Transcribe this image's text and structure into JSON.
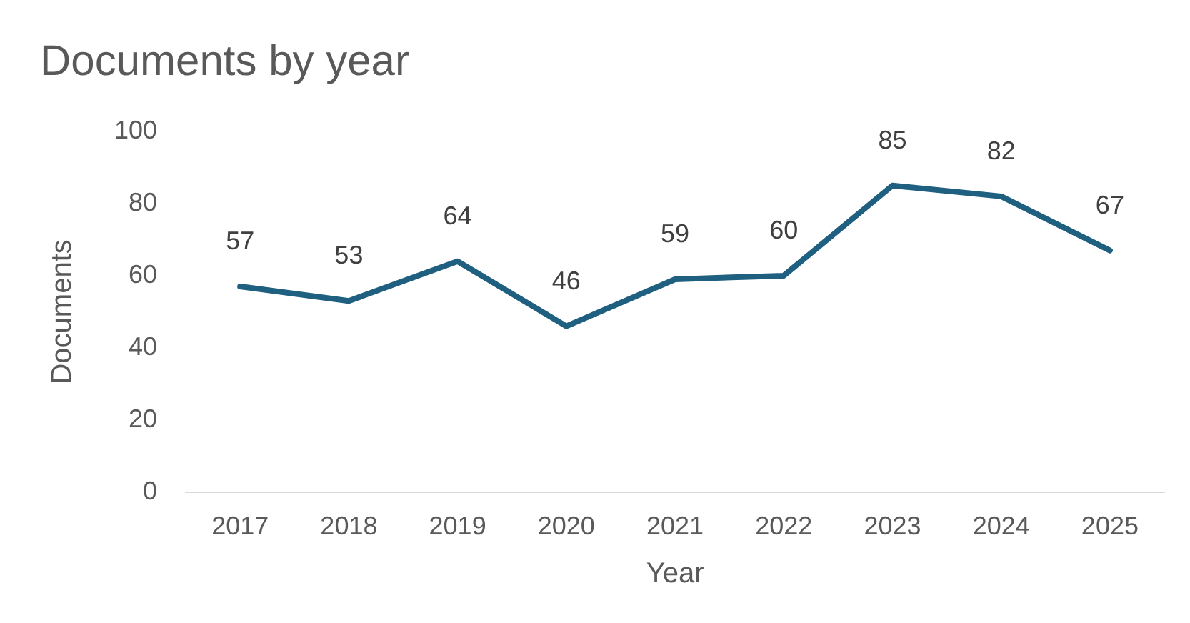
{
  "chart_data": {
    "type": "line",
    "title": "Documents by year",
    "xlabel": "Year",
    "ylabel": "Documents",
    "categories": [
      "2017",
      "2018",
      "2019",
      "2020",
      "2021",
      "2022",
      "2023",
      "2024",
      "2025"
    ],
    "series": [
      {
        "color": "#1f5f7f",
        "values": [
          57,
          53,
          64,
          46,
          59,
          60,
          85,
          82,
          67
        ]
      }
    ],
    "ylim": [
      0,
      100
    ],
    "yticks": [
      0,
      20,
      40,
      60,
      80,
      100
    ],
    "grid": false,
    "legend": false,
    "marker": "none",
    "line_style": "solid",
    "data_labels": true
  }
}
